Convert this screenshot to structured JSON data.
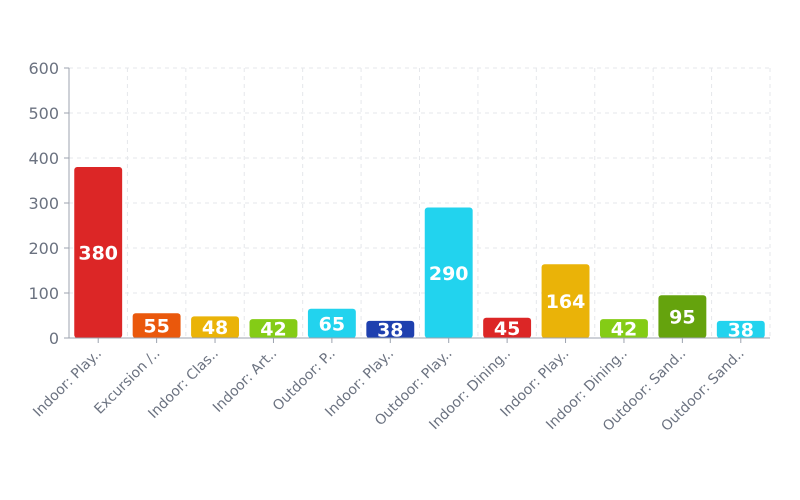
{
  "chart_data": {
    "type": "bar",
    "categories": [
      "Indoor: Play..",
      "Excursion /..",
      "Indoor: Clas..",
      "Indoor: Art..",
      "Outdoor: P..",
      "Indoor: Play..",
      "Outdoor: Play..",
      "Indoor: Dining..",
      "Indoor: Play..",
      "Indoor: Dining..",
      "Outdoor: Sand..",
      "Outdoor: Sand.."
    ],
    "values": [
      380,
      55,
      48,
      42,
      65,
      38,
      290,
      45,
      164,
      42,
      95,
      38
    ],
    "colors": [
      "#dc2626",
      "#ea580c",
      "#eab308",
      "#84cc16",
      "#22d3ee",
      "#1e40af",
      "#22d3ee",
      "#dc2626",
      "#eab308",
      "#84cc16",
      "#65a30d",
      "#22d3ee"
    ],
    "title": "",
    "xlabel": "",
    "ylabel": "",
    "ylim": [
      0,
      600
    ],
    "yticks": [
      0,
      100,
      200,
      300,
      400,
      500,
      600
    ],
    "grid": true,
    "data_labels": true
  }
}
